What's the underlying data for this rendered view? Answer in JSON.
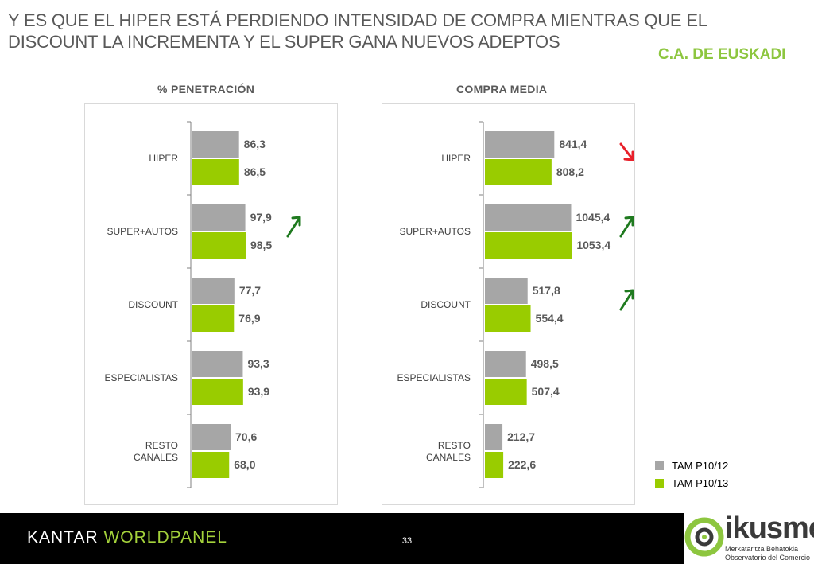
{
  "header": {
    "title": "Y ES QUE EL HIPER ESTÁ PERDIENDO INTENSIDAD DE COMPRA MIENTRAS QUE EL DISCOUNT LA INCREMENTA Y EL SUPER GANA NUEVOS ADEPTOS",
    "region": "C.A. DE EUSKADI"
  },
  "colors": {
    "series1": "#a6a6a6",
    "series2": "#99cc00",
    "up_arrow": "#1f7a1f",
    "down_arrow": "#e8202a",
    "brand_green": "#8dc63f"
  },
  "chart_data": [
    {
      "type": "bar",
      "orientation": "horizontal",
      "title": "% PENETRACIÓN",
      "categories": [
        "HIPER",
        "SUPER+AUTOS",
        "DISCOUNT",
        "ESPECIALISTAS",
        "RESTO CANALES"
      ],
      "series": [
        {
          "name": "TAM P10/12",
          "values": [
            86.3,
            97.9,
            77.7,
            93.3,
            70.6
          ],
          "labels": [
            "86,3",
            "97,9",
            "77,7",
            "93,3",
            "70,6"
          ]
        },
        {
          "name": "TAM P10/13",
          "values": [
            86.5,
            98.5,
            76.9,
            93.9,
            68.0
          ],
          "labels": [
            "86,5",
            "98,5",
            "76,9",
            "93,9",
            "68,0"
          ]
        }
      ],
      "trend_arrows": [
        "none",
        "up",
        "none",
        "none",
        "none"
      ]
    },
    {
      "type": "bar",
      "orientation": "horizontal",
      "title": "COMPRA MEDIA",
      "categories": [
        "HIPER",
        "SUPER+AUTOS",
        "DISCOUNT",
        "ESPECIALISTAS",
        "RESTO CANALES"
      ],
      "series": [
        {
          "name": "TAM P10/12",
          "values": [
            841.4,
            1045.4,
            517.8,
            498.5,
            212.7
          ],
          "labels": [
            "841,4",
            "1045,4",
            "517,8",
            "498,5",
            "212,7"
          ]
        },
        {
          "name": "TAM P10/13",
          "values": [
            808.2,
            1053.4,
            554.4,
            507.4,
            222.6
          ],
          "labels": [
            "808,2",
            "1053,4",
            "554,4",
            "507,4",
            "222,6"
          ]
        }
      ],
      "trend_arrows": [
        "down",
        "up",
        "up",
        "none",
        "none"
      ]
    }
  ],
  "legend": [
    {
      "label": "TAM P10/12",
      "color": "#a6a6a6"
    },
    {
      "label": "TAM P10/13",
      "color": "#99cc00"
    }
  ],
  "footer": {
    "brand_part1": "KANTAR ",
    "brand_part2": "WORLDPANEL",
    "page_number": "33",
    "logo_name": "ikusmer",
    "logo_sub1": "Merkataritza Behatokia",
    "logo_sub2": "Observatorio del Comercio"
  }
}
